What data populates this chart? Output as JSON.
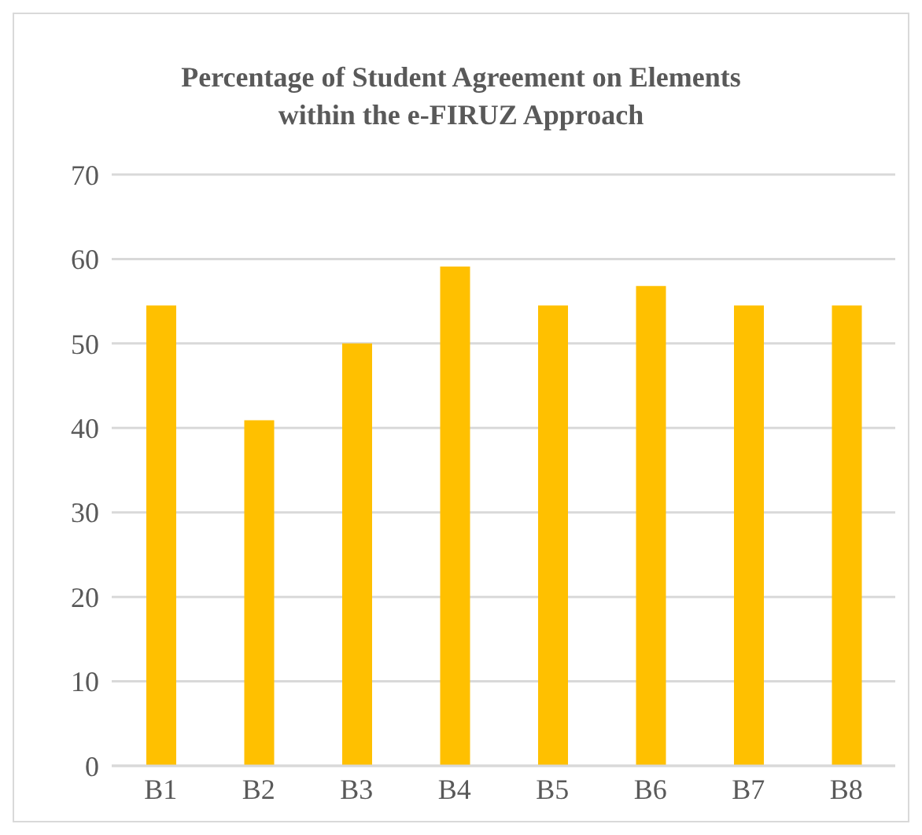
{
  "chart_data": {
    "type": "bar",
    "title": "Percentage of Student Agreement on Elements\nwithin the e-FIRUZ Approach",
    "categories": [
      "B1",
      "B2",
      "B3",
      "B4",
      "B5",
      "B6",
      "B7",
      "B8"
    ],
    "values": [
      54.5,
      40.9,
      50,
      59.1,
      54.5,
      56.8,
      54.5,
      54.5
    ],
    "color": "#ffc000",
    "ylim": [
      0,
      70
    ],
    "yticks": [
      0,
      10,
      20,
      30,
      40,
      50,
      60,
      70
    ],
    "grid": "y"
  }
}
